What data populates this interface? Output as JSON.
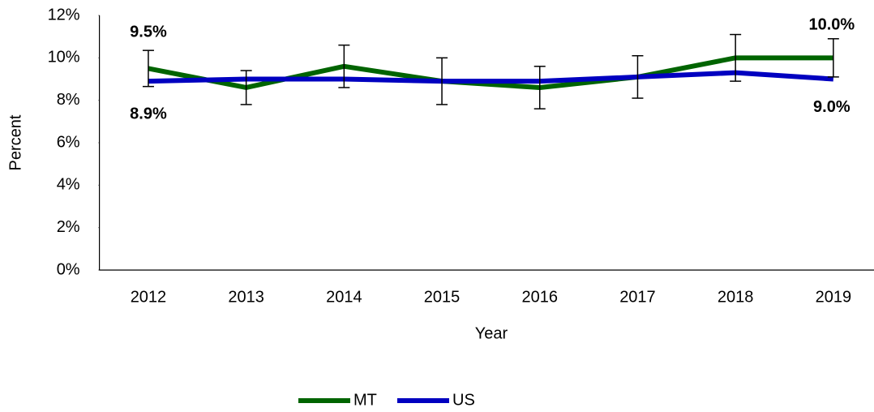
{
  "chart_data": {
    "type": "line",
    "categories": [
      "2012",
      "2013",
      "2014",
      "2015",
      "2016",
      "2017",
      "2018",
      "2019"
    ],
    "x_label": "Year",
    "y_label": "Percent",
    "ylim": [
      0,
      12
    ],
    "yticks": [
      {
        "value": 0,
        "label": "0%"
      },
      {
        "value": 2,
        "label": "2%"
      },
      {
        "value": 4,
        "label": "4%"
      },
      {
        "value": 6,
        "label": "6%"
      },
      {
        "value": 8,
        "label": "8%"
      },
      {
        "value": 10,
        "label": "10%"
      },
      {
        "value": 12,
        "label": "12%"
      }
    ],
    "series": [
      {
        "name": "MT",
        "color": "#006400",
        "values": [
          9.5,
          8.6,
          9.6,
          8.9,
          8.6,
          9.1,
          10.0,
          10.0
        ],
        "errors": [
          0.85,
          0.8,
          1.0,
          1.1,
          1.0,
          1.0,
          1.1,
          0.9
        ],
        "value_labels": [
          "9.5%",
          null,
          null,
          null,
          null,
          null,
          null,
          "10.0%"
        ]
      },
      {
        "name": "US",
        "color": "#0000c0",
        "values": [
          8.9,
          9.0,
          9.0,
          8.9,
          8.9,
          9.1,
          9.3,
          9.0
        ],
        "value_labels": [
          "8.9%",
          null,
          null,
          null,
          null,
          null,
          null,
          "9.0%"
        ]
      }
    ]
  }
}
